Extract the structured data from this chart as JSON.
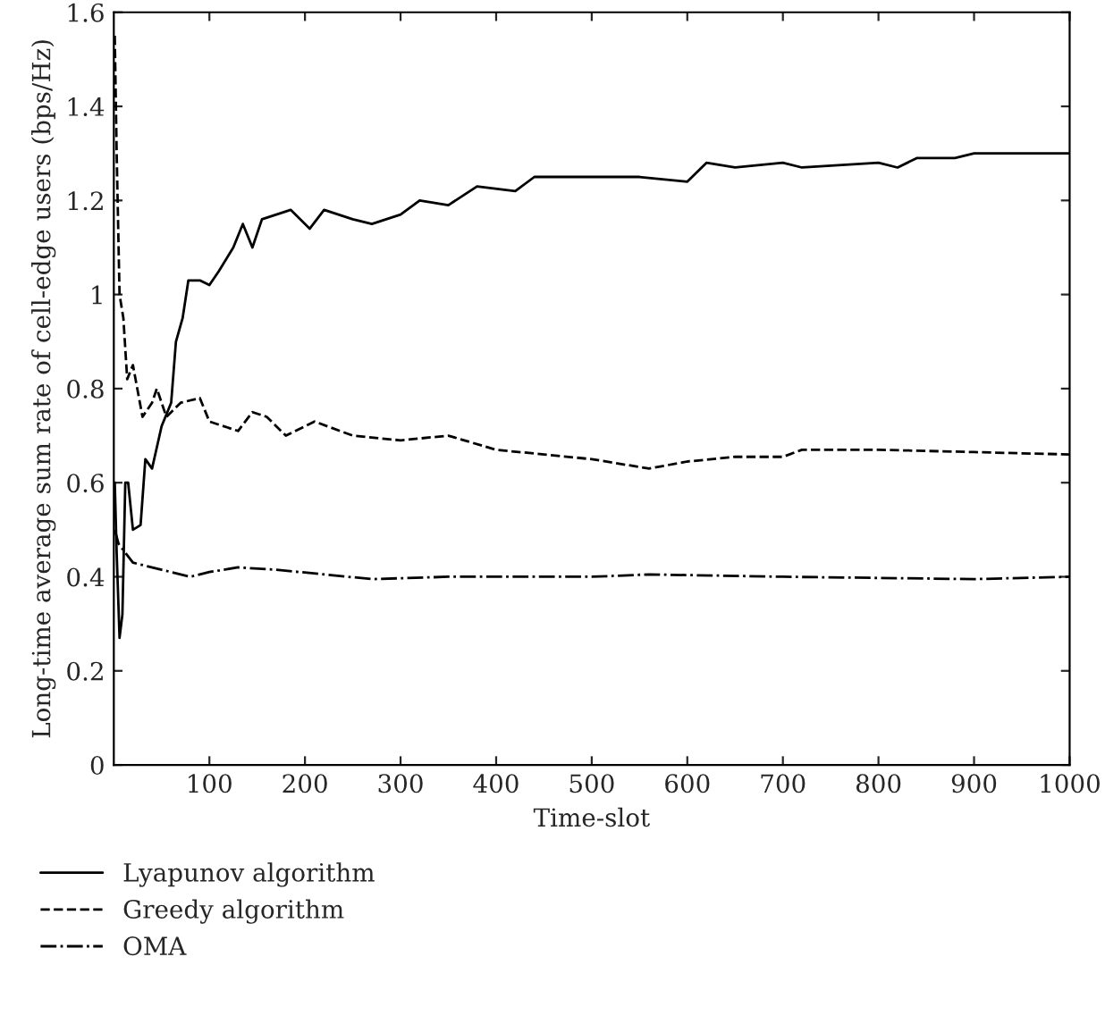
{
  "chart_data": {
    "type": "line",
    "xlabel": "Time-slot",
    "ylabel": "Long-time average sum rate of cell-edge users (bps/Hz)",
    "xlim": [
      0,
      1000
    ],
    "xticks": [
      100,
      200,
      300,
      400,
      500,
      600,
      700,
      800,
      900,
      1000
    ],
    "ylim": [
      0,
      1.6
    ],
    "yticks": [
      0,
      0.2,
      0.4,
      0.6,
      0.8,
      1,
      1.2,
      1.4,
      1.6
    ],
    "grid": false,
    "legend": "bottom left",
    "series": [
      {
        "name": "Lyapunov algorithm",
        "color": "#000000",
        "line_style": "solid",
        "x": [
          1,
          3,
          6,
          9,
          12,
          15,
          20,
          28,
          33,
          40,
          50,
          60,
          65,
          72,
          78,
          90,
          100,
          110,
          125,
          135,
          145,
          155,
          170,
          185,
          205,
          220,
          250,
          270,
          300,
          320,
          350,
          380,
          420,
          440,
          500,
          550,
          600,
          620,
          650,
          700,
          720,
          800,
          820,
          840,
          880,
          900,
          950,
          1000
        ],
        "values": [
          0.6,
          0.45,
          0.27,
          0.32,
          0.6,
          0.6,
          0.5,
          0.51,
          0.65,
          0.63,
          0.72,
          0.77,
          0.9,
          0.95,
          1.03,
          1.03,
          1.02,
          1.05,
          1.1,
          1.15,
          1.1,
          1.16,
          1.17,
          1.18,
          1.14,
          1.18,
          1.16,
          1.15,
          1.17,
          1.2,
          1.19,
          1.23,
          1.22,
          1.25,
          1.25,
          1.25,
          1.24,
          1.28,
          1.27,
          1.28,
          1.27,
          1.28,
          1.27,
          1.29,
          1.29,
          1.3,
          1.3,
          1.3
        ]
      },
      {
        "name": "Greedy algorithm",
        "color": "#000000",
        "line_style": "dashed",
        "x": [
          1,
          3,
          6,
          10,
          14,
          20,
          30,
          40,
          45,
          55,
          70,
          90,
          100,
          130,
          145,
          160,
          180,
          210,
          250,
          300,
          350,
          400,
          450,
          500,
          560,
          600,
          650,
          700,
          720,
          800,
          900,
          1000
        ],
        "values": [
          1.55,
          1.3,
          1.0,
          0.95,
          0.82,
          0.85,
          0.74,
          0.77,
          0.8,
          0.74,
          0.77,
          0.78,
          0.73,
          0.71,
          0.75,
          0.74,
          0.7,
          0.73,
          0.7,
          0.69,
          0.7,
          0.67,
          0.66,
          0.65,
          0.63,
          0.645,
          0.655,
          0.655,
          0.67,
          0.67,
          0.665,
          0.66
        ]
      },
      {
        "name": "OMA",
        "color": "#000000",
        "line_style": "dashdot",
        "x": [
          1,
          5,
          20,
          50,
          80,
          100,
          130,
          170,
          270,
          350,
          500,
          560,
          700,
          900,
          1000
        ],
        "values": [
          0.5,
          0.47,
          0.43,
          0.415,
          0.4,
          0.41,
          0.42,
          0.415,
          0.395,
          0.4,
          0.4,
          0.405,
          0.4,
          0.395,
          0.4
        ]
      }
    ]
  }
}
